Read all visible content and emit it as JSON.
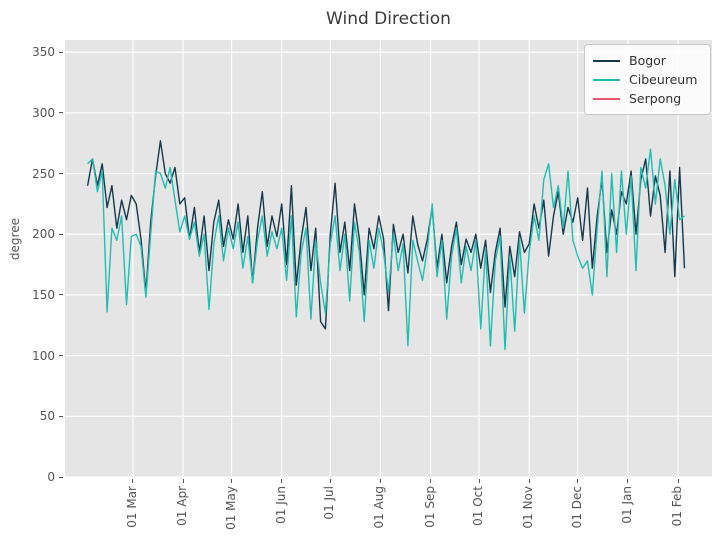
{
  "title": "Wind Direction",
  "ylabel": "degree",
  "colors": {
    "plot_background": "#e5e5e5",
    "figure_background": "#ffffff",
    "gridline": "#ffffff",
    "tick_text": "#555555",
    "title_text": "#3a3a3a",
    "legend_border": "#c9c9c9",
    "bogor": "#16384c",
    "cibeureum": "#21bdb2",
    "serpong": "#ea556f"
  },
  "legend": {
    "items": [
      {
        "label": "Bogor",
        "color": "#16384c"
      },
      {
        "label": "Cibeureum",
        "color": "#21bdb2"
      },
      {
        "label": "Serpong",
        "color": "#ea556f"
      }
    ]
  },
  "chart_data": {
    "type": "line",
    "title": "Wind Direction",
    "xlabel": "",
    "ylabel": "degree",
    "grid": true,
    "legend_position": "upper right",
    "ylim": [
      0,
      360
    ],
    "yticks": [
      0,
      50,
      100,
      150,
      200,
      250,
      300,
      350
    ],
    "xlim_days": [
      -14,
      386
    ],
    "xticks": [
      {
        "day": 28,
        "label": "01 Mar"
      },
      {
        "day": 59,
        "label": "01 Apr"
      },
      {
        "day": 89,
        "label": "01 May"
      },
      {
        "day": 120,
        "label": "01 Jun"
      },
      {
        "day": 150,
        "label": "01 Jul"
      },
      {
        "day": 181,
        "label": "01 Aug"
      },
      {
        "day": 212,
        "label": "01 Sep"
      },
      {
        "day": 242,
        "label": "01 Oct"
      },
      {
        "day": 273,
        "label": "01 Nov"
      },
      {
        "day": 303,
        "label": "01 Dec"
      },
      {
        "day": 334,
        "label": "01 Jan"
      },
      {
        "day": 365,
        "label": "01 Feb"
      }
    ],
    "x_start_day": 0,
    "x_step_days": 3,
    "series": [
      {
        "name": "Bogor",
        "color": "#16384c",
        "values": [
          240,
          262,
          240,
          258,
          222,
          240,
          205,
          228,
          212,
          232,
          225,
          196,
          152,
          210,
          248,
          277,
          250,
          242,
          255,
          225,
          230,
          196,
          222,
          185,
          215,
          170,
          210,
          228,
          190,
          212,
          196,
          225,
          185,
          215,
          160,
          205,
          235,
          190,
          215,
          198,
          225,
          175,
          240,
          158,
          196,
          222,
          170,
          205,
          128,
          122,
          200,
          242,
          185,
          210,
          170,
          225,
          196,
          150,
          205,
          188,
          215,
          196,
          137,
          208,
          185,
          200,
          168,
          215,
          192,
          178,
          196,
          222,
          172,
          200,
          160,
          190,
          210,
          175,
          196,
          185,
          200,
          172,
          195,
          152,
          185,
          205,
          140,
          190,
          165,
          202,
          185,
          192,
          225,
          205,
          228,
          182,
          215,
          235,
          200,
          222,
          210,
          230,
          195,
          238,
          172,
          215,
          245,
          185,
          220,
          200,
          235,
          225,
          252,
          200,
          245,
          262,
          215,
          248,
          232,
          185,
          252,
          165,
          255,
          172
        ]
      },
      {
        "name": "Cibeureum",
        "color": "#21bdb2",
        "values": [
          258,
          262,
          235,
          252,
          136,
          205,
          195,
          215,
          142,
          198,
          200,
          190,
          148,
          200,
          252,
          250,
          238,
          255,
          228,
          202,
          215,
          196,
          210,
          182,
          200,
          138,
          192,
          215,
          178,
          205,
          188,
          210,
          172,
          198,
          160,
          195,
          215,
          182,
          202,
          188,
          205,
          162,
          215,
          132,
          185,
          205,
          130,
          195,
          160,
          135,
          192,
          215,
          170,
          200,
          145,
          210,
          185,
          128,
          195,
          172,
          205,
          185,
          152,
          200,
          170,
          192,
          108,
          195,
          178,
          162,
          188,
          225,
          165,
          195,
          130,
          182,
          205,
          160,
          190,
          170,
          195,
          122,
          188,
          108,
          178,
          198,
          105,
          182,
          120,
          195,
          135,
          185,
          215,
          195,
          245,
          258,
          222,
          240,
          205,
          252,
          195,
          182,
          172,
          178,
          150,
          205,
          252,
          165,
          250,
          185,
          252,
          200,
          248,
          170,
          255,
          238,
          270,
          225,
          262,
          240,
          200,
          245,
          212,
          215
        ]
      },
      {
        "name": "Serpong",
        "color": "#ea556f",
        "values": []
      }
    ]
  }
}
